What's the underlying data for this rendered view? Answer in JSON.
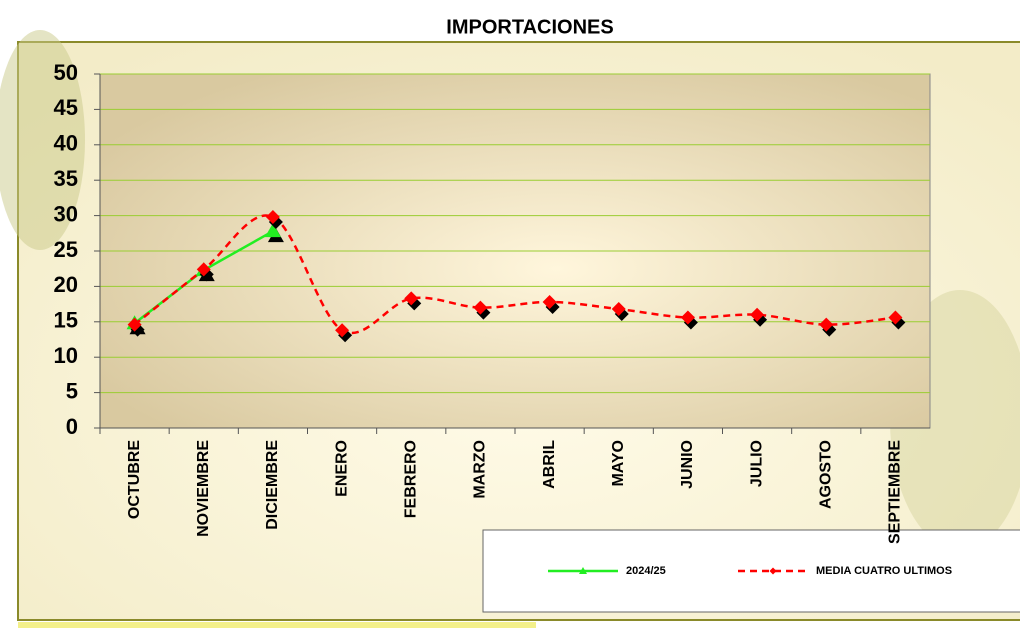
{
  "chart_data": {
    "type": "line",
    "title": "IMPORTACIONES",
    "categories": [
      "OCTUBRE",
      "NOVIEMBRE",
      "DICIEMBRE",
      "ENERO",
      "FEBRERO",
      "MARZO",
      "ABRIL",
      "MAYO",
      "JUNIO",
      "JULIO",
      "AGOSTO",
      "SEPTIEMBRE"
    ],
    "series": [
      {
        "name": "2024/25",
        "color": "#22ee22",
        "marker": "triangle",
        "dashed": false,
        "smooth": false,
        "values": [
          14.8,
          22.3,
          27.8,
          null,
          null,
          null,
          null,
          null,
          null,
          null,
          null,
          null
        ]
      },
      {
        "name": "MEDIA CUATRO ULTIMOS",
        "color": "#ff0000",
        "marker": "diamond",
        "dashed": true,
        "smooth": true,
        "values": [
          14.6,
          22.4,
          29.8,
          13.8,
          18.3,
          17.0,
          17.8,
          16.8,
          15.6,
          16.0,
          14.6,
          15.6
        ]
      }
    ],
    "ylim": [
      0,
      50
    ],
    "yticks": [
      0,
      5,
      10,
      15,
      20,
      25,
      30,
      35,
      40,
      45,
      50
    ],
    "grid": true,
    "legend": "bottom-right"
  }
}
